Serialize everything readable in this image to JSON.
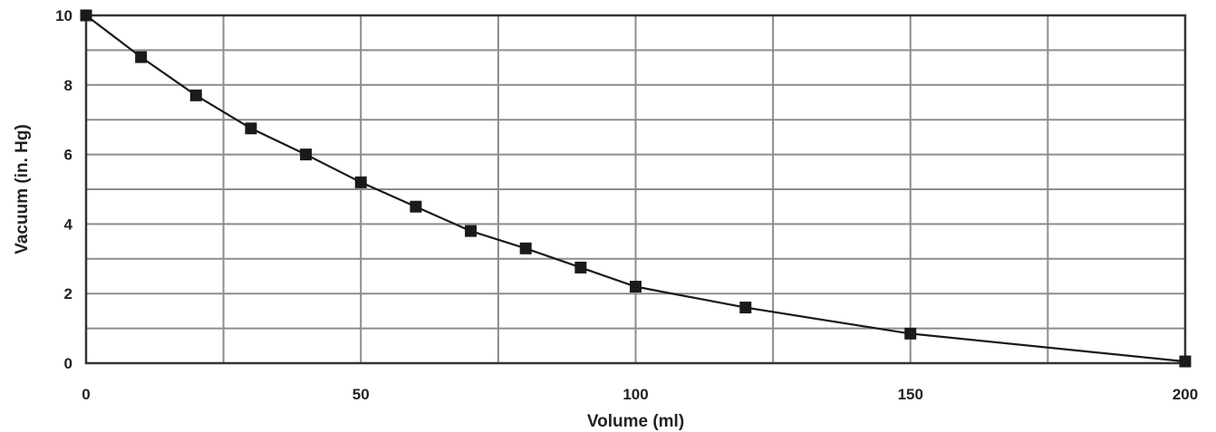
{
  "chart_data": {
    "type": "line",
    "title": "",
    "xlabel": "Volume (ml)",
    "ylabel": "Vacuum (in. Hg)",
    "xlim": [
      0,
      200
    ],
    "ylim": [
      0,
      10
    ],
    "x_ticks": [
      0,
      50,
      100,
      150,
      200
    ],
    "x_tick_labels": [
      "0",
      "50",
      "100",
      "150",
      "200"
    ],
    "y_ticks": [
      0,
      2,
      4,
      6,
      8,
      10
    ],
    "y_tick_labels": [
      "0",
      "2",
      "4",
      "6",
      "8",
      "10"
    ],
    "x_grid_step": 25,
    "y_grid_step": 1,
    "grid": true,
    "legend": "none",
    "colors": {
      "line": "#1a1a1a",
      "marker": "#1a1a1a",
      "grid": "#8c8c8c",
      "axis": "#333333"
    },
    "series": [
      {
        "x": [
          0,
          10,
          20,
          30,
          40,
          50,
          60,
          70,
          80,
          90,
          100,
          120,
          150,
          200
        ],
        "y": [
          10.0,
          8.8,
          7.7,
          6.75,
          6.0,
          5.2,
          4.5,
          3.8,
          3.3,
          2.75,
          2.2,
          1.6,
          0.85,
          0.05
        ]
      }
    ]
  }
}
